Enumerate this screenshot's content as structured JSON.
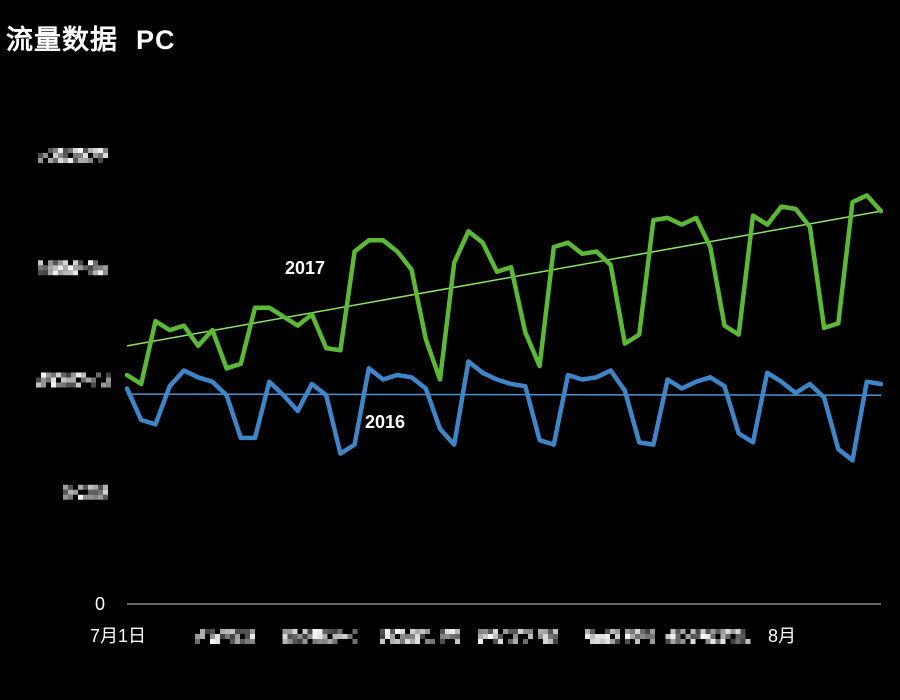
{
  "header": {
    "title": "流量数据",
    "subtitle": "PC"
  },
  "chart_data": {
    "type": "line",
    "ylim": [
      0,
      20000
    ],
    "y_ticks": [
      {
        "value": 0,
        "label": "0"
      },
      {
        "value": 5000,
        "label": ""
      },
      {
        "value": 10000,
        "label": ""
      },
      {
        "value": 15000,
        "label": ""
      },
      {
        "value": 20000,
        "label": ""
      }
    ],
    "x_tick_labels": [
      "7月1日",
      "",
      "",
      "",
      "",
      "",
      "",
      "8月"
    ],
    "colors": {
      "2017": "#5cb937",
      "2016": "#3f86c8",
      "trend_2017": "#8fe36a",
      "trend_2016": "#4c93d4"
    },
    "series": [
      {
        "name": "2017",
        "values": [
          10200,
          9800,
          12600,
          12200,
          12400,
          11500,
          12200,
          10500,
          10700,
          13200,
          13200,
          12800,
          12400,
          12900,
          11400,
          11300,
          15700,
          16200,
          16200,
          15700,
          14900,
          11800,
          10000,
          15200,
          16600,
          16100,
          14800,
          15000,
          12100,
          10600,
          15900,
          16100,
          15600,
          15700,
          15100,
          11600,
          12000,
          17100,
          17200,
          16900,
          17200,
          15900,
          12400,
          12000,
          17300,
          16900,
          17700,
          17600,
          16800,
          12300,
          12500,
          17900,
          18200,
          17500
        ],
        "trend": [
          11500,
          17500
        ]
      },
      {
        "name": "2016",
        "values": [
          9600,
          8200,
          8000,
          9700,
          10400,
          10100,
          9900,
          9300,
          7400,
          7400,
          9900,
          9300,
          8600,
          9800,
          9300,
          6700,
          7100,
          10500,
          10000,
          10200,
          10100,
          9600,
          7800,
          7100,
          10800,
          10300,
          10000,
          9800,
          9700,
          7300,
          7100,
          10200,
          10000,
          10100,
          10400,
          9500,
          7200,
          7100,
          10000,
          9600,
          9900,
          10100,
          9700,
          7600,
          7200,
          10300,
          9900,
          9400,
          9800,
          9200,
          6900,
          6400,
          9900,
          9800
        ],
        "trend": [
          9350,
          9300
        ]
      }
    ]
  }
}
